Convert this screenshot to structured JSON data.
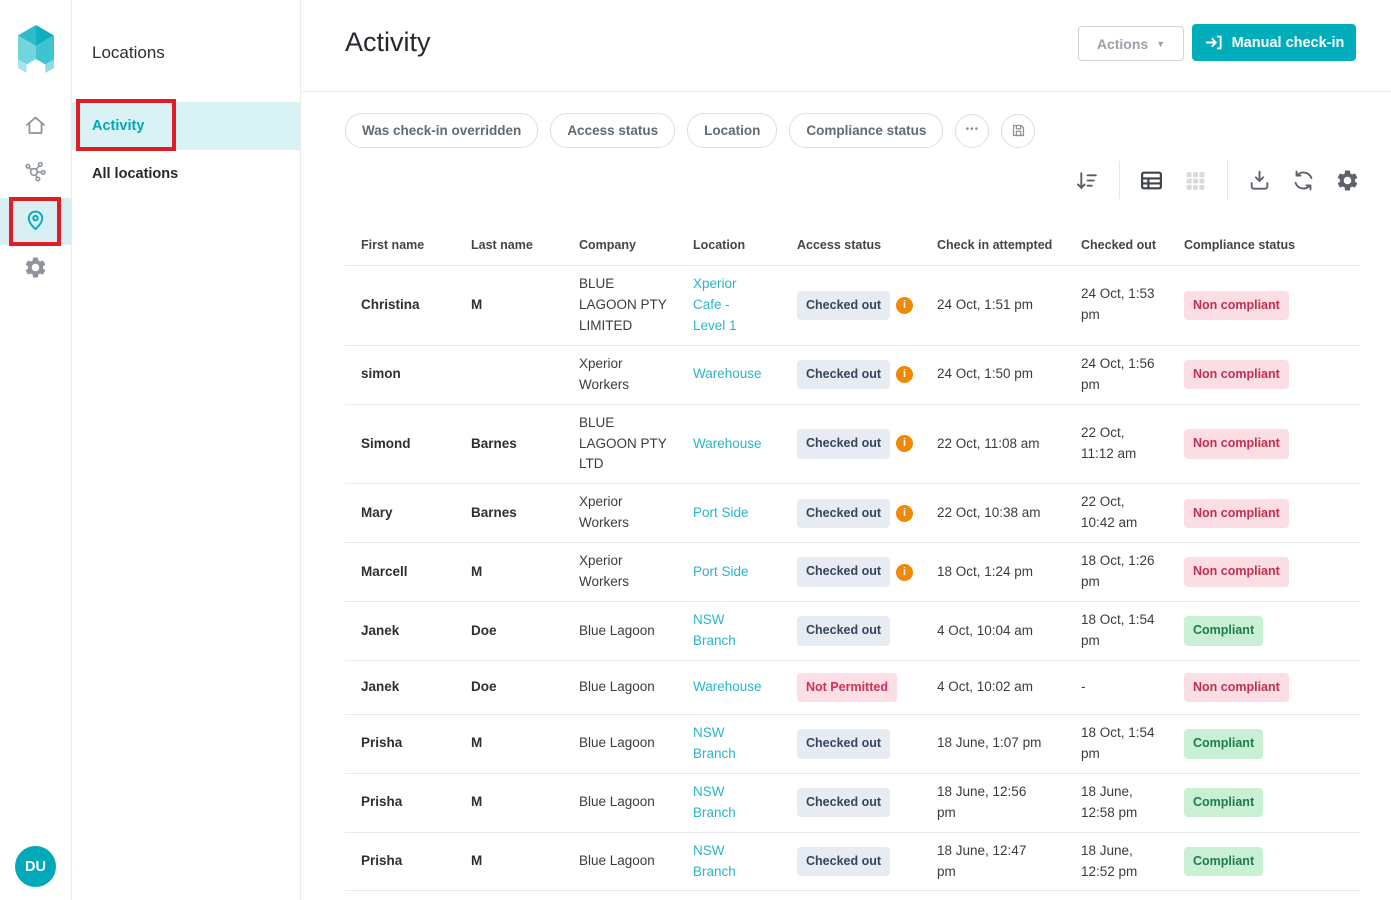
{
  "rail": {
    "items": [
      {
        "label": "home",
        "icon": "home-icon",
        "active": false
      },
      {
        "label": "integrations",
        "icon": "network-icon",
        "active": false
      },
      {
        "label": "locations",
        "icon": "location-pin-icon",
        "active": true
      },
      {
        "label": "settings",
        "icon": "gear-icon",
        "active": false
      }
    ],
    "avatar_initials": "DU"
  },
  "sidebar": {
    "title": "Locations",
    "items": [
      {
        "label": "Activity",
        "active": true
      },
      {
        "label": "All locations",
        "active": false
      }
    ]
  },
  "header": {
    "title": "Activity",
    "actions_label": "Actions",
    "actions_caret": "▼",
    "manual_checkin_label": "Manual check-in",
    "manual_checkin_icon": "login-arrow-icon"
  },
  "filters": {
    "chips": [
      "Was check-in overridden",
      "Access status",
      "Location",
      "Compliance status"
    ],
    "more_label": "•••",
    "save_icon": "save-icon"
  },
  "toolbar": {
    "icons": [
      "sort-descending-icon",
      "table-view-icon",
      "grid-view-icon",
      "download-icon",
      "refresh-icon",
      "settings-icon"
    ]
  },
  "table": {
    "columns": [
      "First name",
      "Last name",
      "Company",
      "Location",
      "Access status",
      "Check in attempted",
      "Checked out",
      "Compliance status"
    ],
    "rows": [
      {
        "first_name": "Christina",
        "last_name": "M",
        "company": "BLUE LAGOON PTY LIMITED",
        "location": "Xperior Cafe - Level 1",
        "access_status": "Checked out",
        "access_info": true,
        "check_in": "24 Oct, 1:51 pm",
        "checked_out": "24 Oct, 1:53 pm",
        "compliance": "Non compliant"
      },
      {
        "first_name": "simon",
        "last_name": "",
        "company": "Xperior Workers",
        "location": "Warehouse",
        "access_status": "Checked out",
        "access_info": true,
        "check_in": "24 Oct, 1:50 pm",
        "checked_out": "24 Oct, 1:56 pm",
        "compliance": "Non compliant"
      },
      {
        "first_name": "Simond",
        "last_name": "Barnes",
        "company": "BLUE LAGOON PTY LTD",
        "location": "Warehouse",
        "access_status": "Checked out",
        "access_info": true,
        "check_in": "22 Oct, 11:08 am",
        "checked_out": "22 Oct, 11:12 am",
        "compliance": "Non compliant"
      },
      {
        "first_name": "Mary",
        "last_name": "Barnes",
        "company": "Xperior Workers",
        "location": "Port Side",
        "access_status": "Checked out",
        "access_info": true,
        "check_in": "22 Oct, 10:38 am",
        "checked_out": "22 Oct, 10:42 am",
        "compliance": "Non compliant"
      },
      {
        "first_name": "Marcell",
        "last_name": "M",
        "company": "Xperior Workers",
        "location": "Port Side",
        "access_status": "Checked out",
        "access_info": true,
        "check_in": "18 Oct, 1:24 pm",
        "checked_out": "18 Oct, 1:26 pm",
        "compliance": "Non compliant"
      },
      {
        "first_name": "Janek",
        "last_name": "Doe",
        "company": "Blue Lagoon",
        "location": "NSW Branch",
        "access_status": "Checked out",
        "access_info": false,
        "check_in": "4 Oct, 10:04 am",
        "checked_out": "18 Oct, 1:54 pm",
        "compliance": "Compliant"
      },
      {
        "first_name": "Janek",
        "last_name": "Doe",
        "company": "Blue Lagoon",
        "location": "Warehouse",
        "access_status": "Not Permitted",
        "access_info": false,
        "check_in": "4 Oct, 10:02 am",
        "checked_out": "-",
        "compliance": "Non compliant"
      },
      {
        "first_name": "Prisha",
        "last_name": "M",
        "company": "Blue Lagoon",
        "location": "NSW Branch",
        "access_status": "Checked out",
        "access_info": false,
        "check_in": "18 June, 1:07 pm",
        "checked_out": "18 Oct, 1:54 pm",
        "compliance": "Compliant"
      },
      {
        "first_name": "Prisha",
        "last_name": "M",
        "company": "Blue Lagoon",
        "location": "NSW Branch",
        "access_status": "Checked out",
        "access_info": false,
        "check_in": "18 June, 12:56 pm",
        "checked_out": "18 June, 12:58 pm",
        "compliance": "Compliant"
      },
      {
        "first_name": "Prisha",
        "last_name": "M",
        "company": "Blue Lagoon",
        "location": "NSW Branch",
        "access_status": "Checked out",
        "access_info": false,
        "check_in": "18 June, 12:47 pm",
        "checked_out": "18 June, 12:52 pm",
        "compliance": "Compliant"
      }
    ]
  },
  "colors": {
    "accent_teal": "#00aebb",
    "link_teal": "#2ab5c5",
    "active_item_bg": "#d9f2f5",
    "annotation_red": "#df1d24",
    "badge_neutral_bg": "#e7ebf2",
    "badge_green_bg": "#c9efd5",
    "badge_pink_bg": "#fbdee3",
    "info_orange": "#f08705"
  }
}
